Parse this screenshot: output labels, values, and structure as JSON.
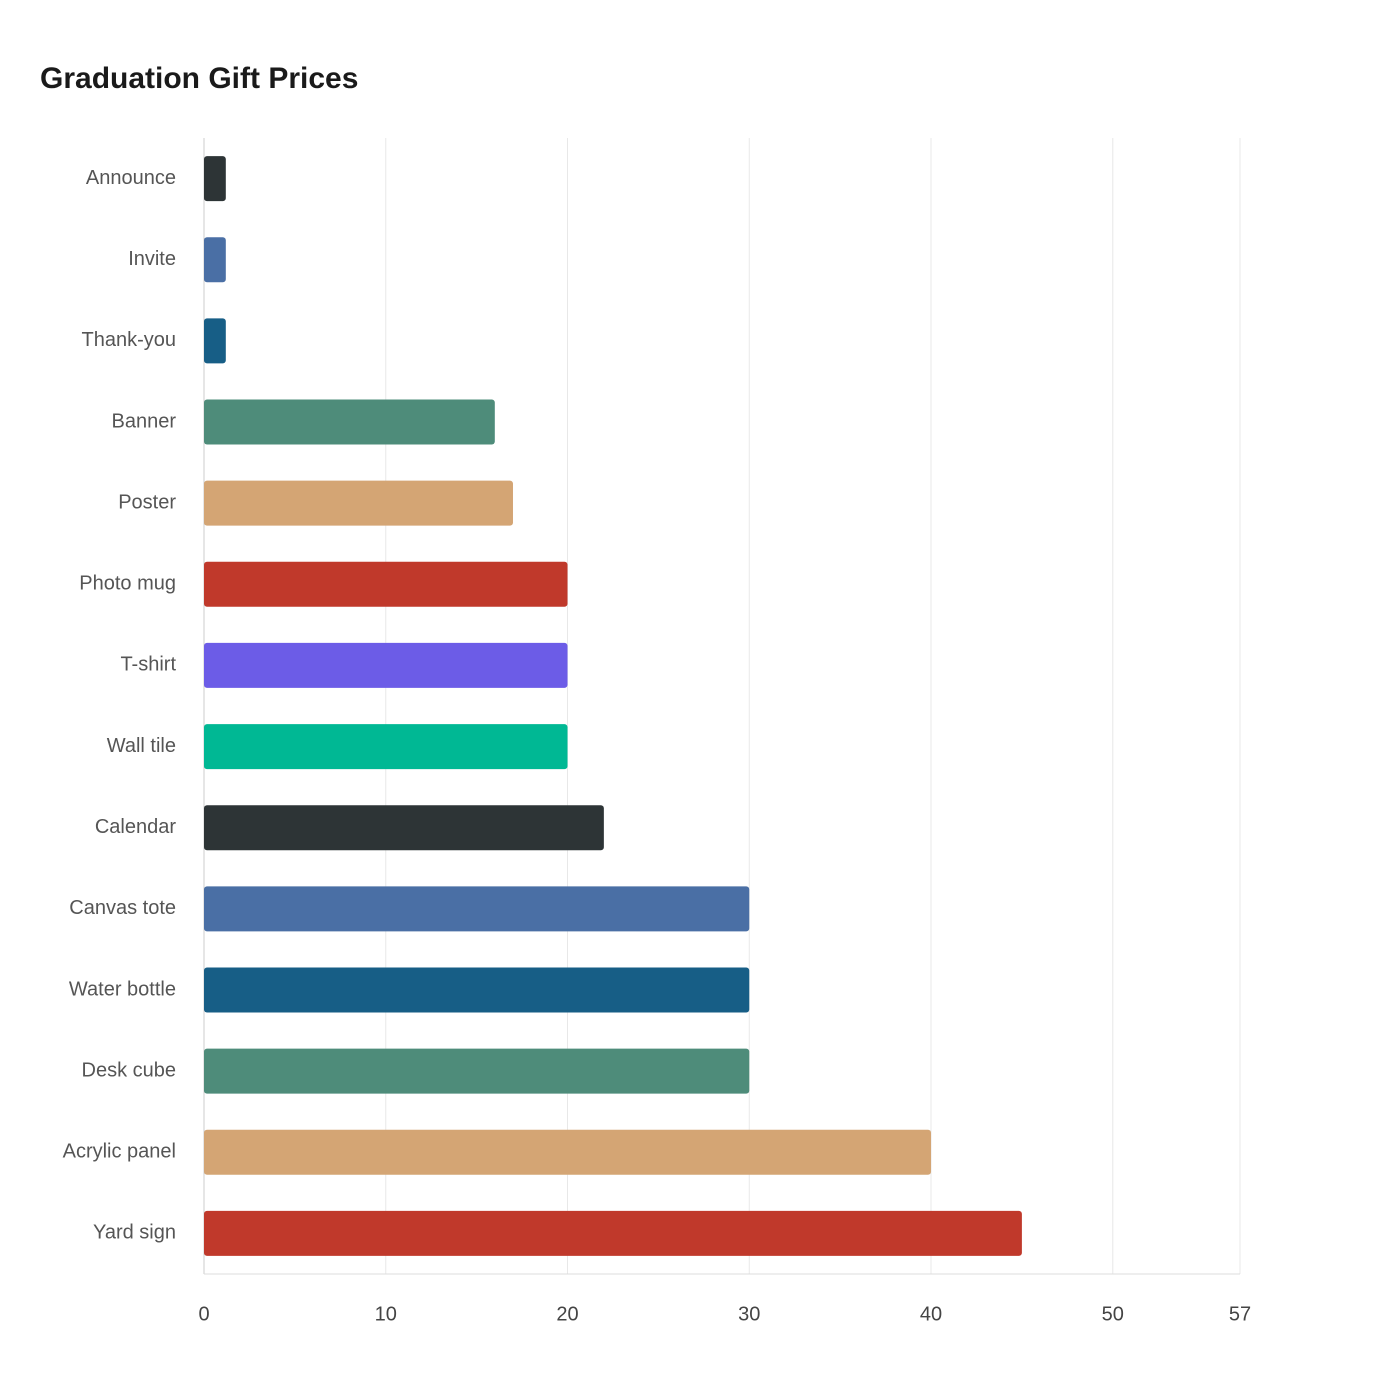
{
  "chart_data": {
    "type": "bar",
    "orientation": "horizontal",
    "title": "Graduation Gift Prices",
    "categories": [
      "Announce",
      "Invite",
      "Thank-you",
      "Banner",
      "Poster",
      "Photo mug",
      "T-shirt",
      "Wall tile",
      "Calendar",
      "Canvas tote",
      "Water bottle",
      "Desk cube",
      "Acrylic panel",
      "Yard sign"
    ],
    "values": [
      1.2,
      1.2,
      1.2,
      16,
      17,
      20,
      20,
      20,
      22,
      30,
      30,
      30,
      40,
      45
    ],
    "colors": [
      "#2d3436",
      "#4a6fa5",
      "#175e86",
      "#4e8c7a",
      "#d4a574",
      "#c0392b",
      "#6c5ce7",
      "#00b894",
      "#2d3436",
      "#4a6fa5",
      "#175e86",
      "#4e8c7a",
      "#d4a574",
      "#c0392b"
    ],
    "xlim": [
      0,
      57
    ],
    "xticks": [
      0,
      10,
      20,
      30,
      40,
      50,
      57
    ],
    "grid": true
  }
}
